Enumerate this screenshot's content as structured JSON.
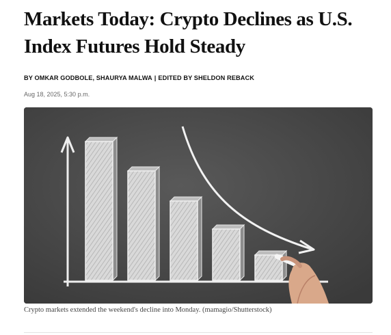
{
  "article": {
    "headline": "Markets Today: Crypto Declines as U.S. Index Futures Hold Steady",
    "byline": {
      "authors": "BY OMKAR GODBOLE, SHAURYA MALWA",
      "separator": "|",
      "editor": "EDITED BY SHELDON REBACK"
    },
    "date": "Aug 18, 2025, 5:30 p.m.",
    "image": {
      "caption": "Crypto markets extended the weekend's decline into Monday. (mamagio/Shutterstock)",
      "subject": "chalkboard drawing of declining bar chart with downward arrow and hand holding chalk",
      "bar_levels": [
        1.0,
        0.79,
        0.57,
        0.37,
        0.18
      ]
    }
  },
  "colors": {
    "text": "#111111",
    "muted": "#666666",
    "chalkboard": "#4a4a4a",
    "chalk": "#f2f2f2"
  }
}
